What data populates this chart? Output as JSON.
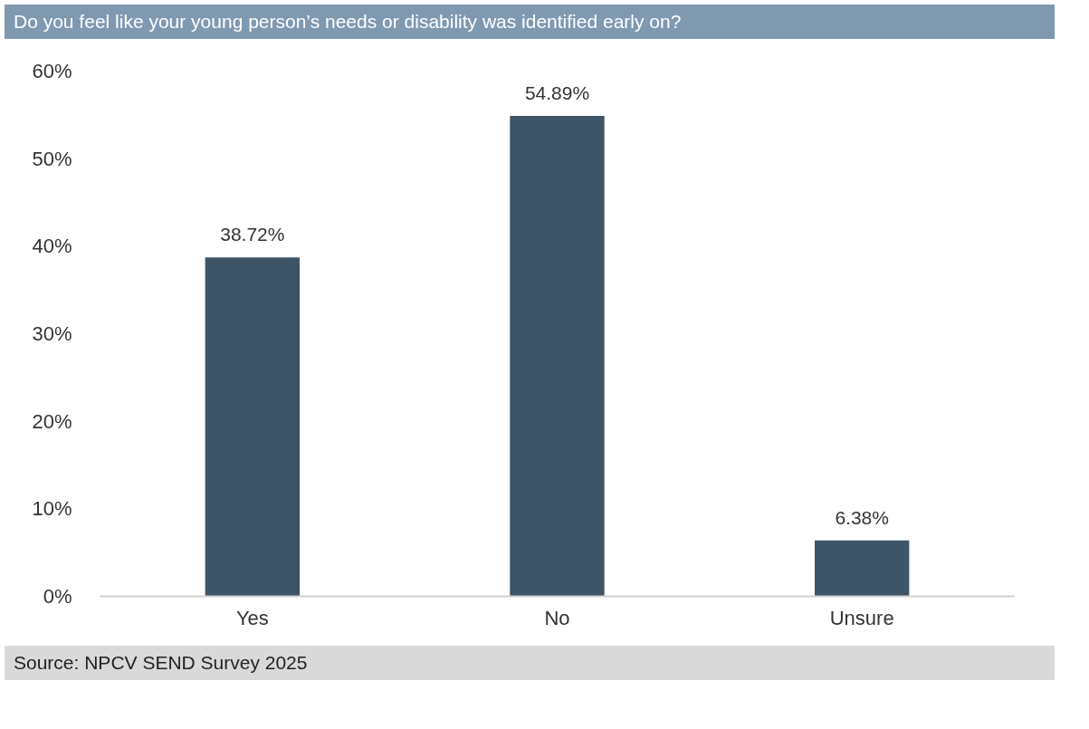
{
  "chart_data": {
    "type": "bar",
    "title": "Do you feel like your young person’s needs or disability was identified early on?",
    "categories": [
      "Yes",
      "No",
      "Unsure"
    ],
    "values": [
      38.72,
      54.89,
      6.38
    ],
    "value_labels": [
      "38.72%",
      "54.89%",
      "6.38%"
    ],
    "color": "#3e5467",
    "ylim": [
      0,
      60
    ],
    "yticks": [
      {
        "value": 0,
        "label": "0%"
      },
      {
        "value": 10,
        "label": "10%"
      },
      {
        "value": 20,
        "label": "20%"
      },
      {
        "value": 30,
        "label": "30%"
      },
      {
        "value": 40,
        "label": "40%"
      },
      {
        "value": 50,
        "label": "50%"
      },
      {
        "value": 60,
        "label": "60%"
      }
    ],
    "grid": false,
    "annotations": [
      "Source: NPCV SEND Survey 2025"
    ]
  }
}
